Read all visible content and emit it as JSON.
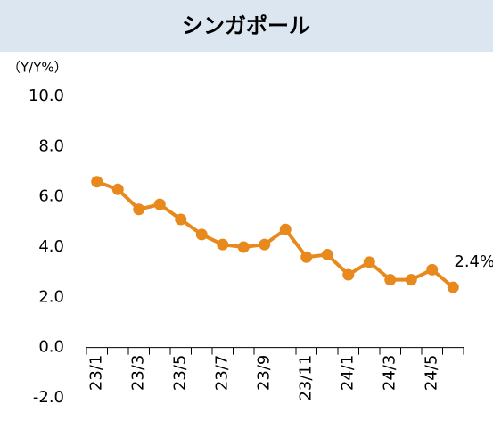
{
  "chart_data": {
    "type": "line",
    "title": "シンガポール",
    "y_label": "（Y/Y%）",
    "categories": [
      "23/1",
      null,
      "23/3",
      null,
      "23/5",
      null,
      "23/7",
      null,
      "23/9",
      null,
      "23/11",
      null,
      "24/1",
      null,
      "24/3",
      null,
      "24/5",
      null
    ],
    "series": [
      {
        "name": "シンガポール",
        "color": "#e8891e",
        "values": [
          6.6,
          6.3,
          5.5,
          5.7,
          5.1,
          4.5,
          4.1,
          4.0,
          4.1,
          4.7,
          3.6,
          3.7,
          2.9,
          3.4,
          2.7,
          2.7,
          3.1,
          2.4
        ],
        "value_labels": [
          null,
          null,
          null,
          null,
          null,
          null,
          null,
          null,
          null,
          null,
          null,
          null,
          null,
          null,
          null,
          null,
          null,
          "2.4%"
        ]
      }
    ],
    "ylim": [
      -2,
      10
    ],
    "yticks": [
      {
        "value": -2,
        "label": "-2.0"
      },
      {
        "value": 0,
        "label": "0.0"
      },
      {
        "value": 2,
        "label": "2.0"
      },
      {
        "value": 4,
        "label": "4.0"
      },
      {
        "value": 6,
        "label": "6.0"
      },
      {
        "value": 8,
        "label": "8.0"
      },
      {
        "value": 10,
        "label": "10.0"
      }
    ],
    "grid": false
  }
}
